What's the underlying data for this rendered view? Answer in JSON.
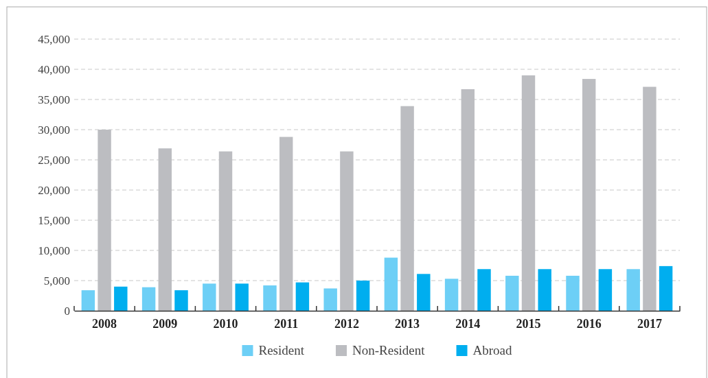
{
  "chart_data": {
    "type": "bar",
    "categories": [
      "2008",
      "2009",
      "2010",
      "2011",
      "2012",
      "2013",
      "2014",
      "2015",
      "2016",
      "2017"
    ],
    "series": [
      {
        "name": "Resident",
        "color": "#6dcff6",
        "values": [
          3400,
          3900,
          4500,
          4200,
          3700,
          8800,
          5300,
          5800,
          5800,
          6900
        ]
      },
      {
        "name": "Non-Resident",
        "color": "#bcbdc1",
        "values": [
          30000,
          26900,
          26400,
          28800,
          26400,
          33900,
          36700,
          39000,
          38400,
          37100
        ]
      },
      {
        "name": "Abroad",
        "color": "#00aeef",
        "values": [
          4000,
          3400,
          4500,
          4700,
          5000,
          6100,
          6900,
          6900,
          6900,
          7400
        ]
      }
    ],
    "ylim": [
      0,
      45000
    ],
    "yticks": [
      {
        "value": 0,
        "label": "0"
      },
      {
        "value": 5000,
        "label": "5,000"
      },
      {
        "value": 10000,
        "label": "10,000"
      },
      {
        "value": 15000,
        "label": "15,000"
      },
      {
        "value": 20000,
        "label": "20,000"
      },
      {
        "value": 25000,
        "label": "25,000"
      },
      {
        "value": 30000,
        "label": "30,000"
      },
      {
        "value": 35000,
        "label": "35,000"
      },
      {
        "value": 40000,
        "label": "40,000"
      },
      {
        "value": 45000,
        "label": "45,000"
      }
    ],
    "grid": "y",
    "legend": "bottom"
  }
}
